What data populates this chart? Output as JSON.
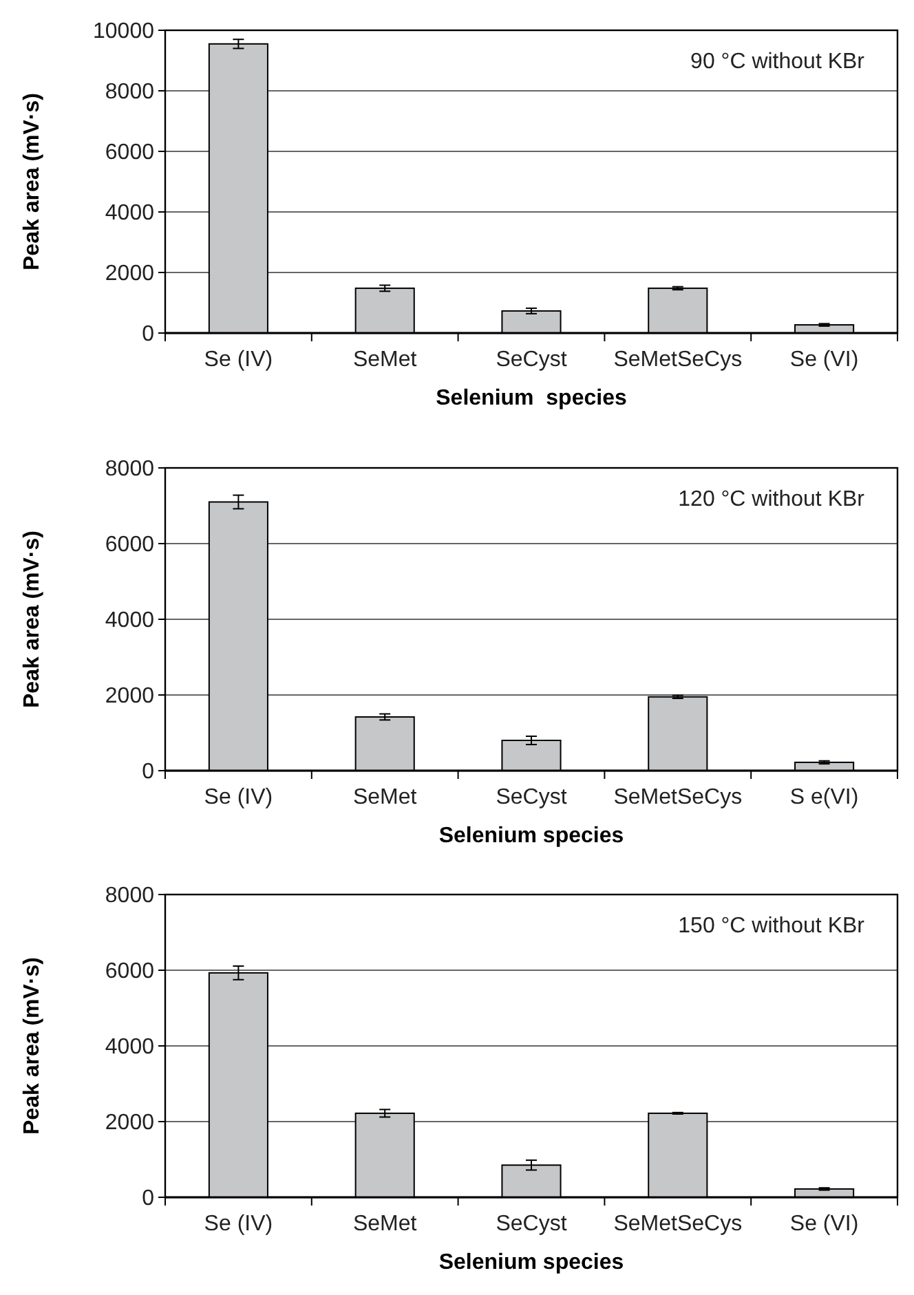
{
  "chart_data": [
    {
      "type": "bar",
      "xlabel": "Selenium  species",
      "ylabel": "Peak area (mV·s)",
      "categories": [
        "Se (IV)",
        "SeMet",
        "SeCyst",
        "SeMetSeCys",
        "Se (VI)"
      ],
      "values": [
        9550,
        1480,
        730,
        1480,
        270
      ],
      "errors": [
        150,
        100,
        90,
        50,
        40
      ],
      "color": "#c6c7c9",
      "ylim": [
        0,
        10000
      ],
      "yticks": [
        0,
        2000,
        4000,
        6000,
        8000,
        10000
      ],
      "grid": "y",
      "annotations": [
        "90 °C without KBr"
      ]
    },
    {
      "type": "bar",
      "xlabel": "Selenium species",
      "ylabel": "Peak area (mV·s)",
      "categories": [
        "Se (IV)",
        "SeMet",
        "SeCyst",
        "SeMetSeCys",
        "S e(VI)"
      ],
      "values": [
        7100,
        1420,
        800,
        1950,
        220
      ],
      "errors": [
        180,
        80,
        110,
        40,
        40
      ],
      "color": "#c6c7c9",
      "ylim": [
        0,
        8000
      ],
      "yticks": [
        0,
        2000,
        4000,
        6000,
        8000
      ],
      "grid": "y",
      "annotations": [
        "120 °C without KBr"
      ]
    },
    {
      "type": "bar",
      "xlabel": "Selenium species",
      "ylabel": "Peak area (mV·s)",
      "categories": [
        "Se (IV)",
        "SeMet",
        "SeCyst",
        "SeMetSeCys",
        "Se (VI)"
      ],
      "values": [
        5930,
        2220,
        850,
        2220,
        220
      ],
      "errors": [
        180,
        100,
        130,
        20,
        30
      ],
      "color": "#c6c7c9",
      "ylim": [
        0,
        8000
      ],
      "yticks": [
        0,
        2000,
        4000,
        6000,
        8000
      ],
      "grid": "y",
      "annotations": [
        "150 °C without KBr"
      ]
    }
  ]
}
